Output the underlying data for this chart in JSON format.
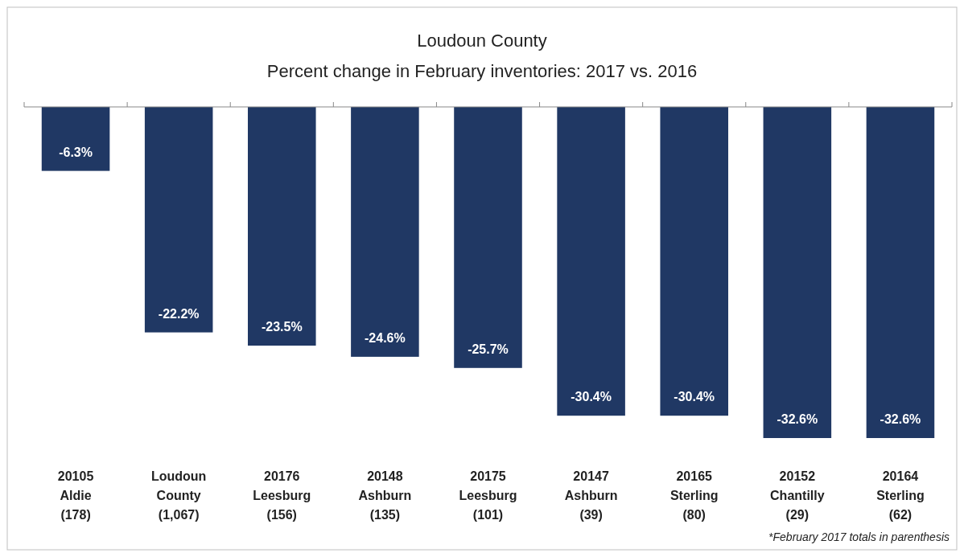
{
  "chart_data": {
    "type": "bar",
    "title": "Loudoun County",
    "subtitle": "Percent change in February inventories: 2017 vs. 2016",
    "categories": [
      "20105\nAldie\n(178)",
      "Loudoun\nCounty\n(1,067)",
      "20176\nLeesburg\n(156)",
      "20148\nAshburn\n(135)",
      "20175\nLeesburg\n(101)",
      "20147\nAshburn\n(39)",
      "20165\nSterling\n(80)",
      "20152\nChantilly\n(29)",
      "20164\nSterling\n(62)"
    ],
    "values": [
      -6.3,
      -22.2,
      -23.5,
      -24.6,
      -25.7,
      -30.4,
      -30.4,
      -32.6,
      -32.6
    ],
    "value_labels": [
      "-6.3%",
      "-22.2%",
      "-23.5%",
      "-24.6%",
      "-25.7%",
      "-30.4%",
      "-30.4%",
      "-32.6%",
      "-32.6%"
    ],
    "color": "#203864",
    "annotations": [
      "*February 2017 totals in parenthesis"
    ]
  }
}
